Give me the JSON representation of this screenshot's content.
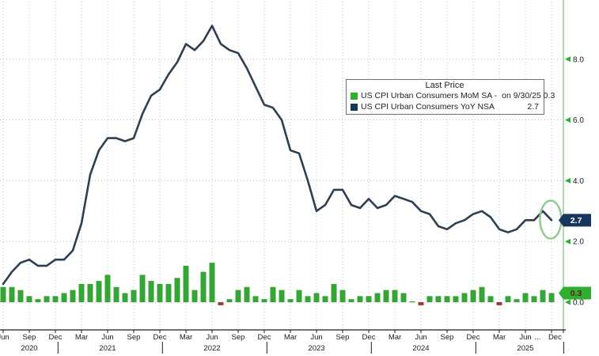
{
  "legend": {
    "title": "Last Price",
    "series": [
      {
        "label": "US CPI Urban Consumers MoM SA -",
        "value": "on 9/30/25 0.3",
        "swatch_color": "#2fae2f"
      },
      {
        "label": "US CPI Urban Consumers YoY NSA",
        "value": "2.7",
        "swatch_color": "#17365d"
      }
    ]
  },
  "chart_data": {
    "type": "mixed",
    "title": "",
    "x": {
      "start": "2020-06",
      "end": "2025-09",
      "unit": "month"
    },
    "grid": "dotted",
    "legend_position": "upper-right",
    "ylim": [
      -0.9,
      9.95
    ],
    "series": [
      {
        "name": "US CPI Urban Consumers MoM SA",
        "type": "bar",
        "color": "#35a535",
        "negative_color": "#9c3a32",
        "values": [
          0.5,
          0.5,
          0.4,
          0.2,
          0.1,
          0.2,
          0.2,
          0.3,
          0.4,
          0.6,
          0.6,
          0.7,
          0.9,
          0.5,
          0.3,
          0.4,
          0.9,
          0.7,
          0.6,
          0.6,
          0.8,
          1.2,
          0.4,
          1.0,
          1.3,
          -0.1,
          0.1,
          0.4,
          0.5,
          0.2,
          0.1,
          0.5,
          0.4,
          0.1,
          0.4,
          0.2,
          0.3,
          0.2,
          0.6,
          0.4,
          0.1,
          0.2,
          0.2,
          0.3,
          0.4,
          0.4,
          0.3,
          0.0,
          -0.1,
          0.2,
          0.2,
          0.2,
          0.2,
          0.3,
          0.4,
          0.5,
          0.2,
          -0.1,
          0.2,
          0.1,
          0.3,
          0.2,
          0.4,
          0.3
        ]
      },
      {
        "name": "US CPI Urban Consumers YoY NSA",
        "type": "line",
        "color": "#2d3f50",
        "values": [
          0.6,
          1.0,
          1.3,
          1.4,
          1.2,
          1.2,
          1.4,
          1.4,
          1.7,
          2.6,
          4.2,
          5.0,
          5.4,
          5.4,
          5.3,
          5.4,
          6.2,
          6.8,
          7.0,
          7.5,
          7.9,
          8.5,
          8.3,
          8.6,
          9.1,
          8.5,
          8.3,
          8.2,
          7.7,
          7.1,
          6.5,
          6.4,
          6.0,
          5.0,
          4.9,
          4.0,
          3.0,
          3.2,
          3.7,
          3.7,
          3.2,
          3.1,
          3.4,
          3.1,
          3.2,
          3.5,
          3.4,
          3.3,
          3.0,
          2.9,
          2.5,
          2.4,
          2.6,
          2.7,
          2.9,
          3.0,
          2.8,
          2.4,
          2.3,
          2.4,
          2.7,
          2.7,
          3.0,
          2.7
        ]
      }
    ],
    "y_ticks": [
      {
        "value": 8,
        "label": "8.0"
      },
      {
        "value": 6,
        "label": "6.0"
      },
      {
        "value": 4,
        "label": "4.0"
      },
      {
        "value": 2,
        "label": "2.0"
      },
      {
        "value": 0,
        "label": "0.0"
      }
    ],
    "x_ticks": [
      {
        "m": 0,
        "label": "Jun"
      },
      {
        "m": 3,
        "label": "Sep"
      },
      {
        "m": 6,
        "label": "Dec"
      },
      {
        "m": 9,
        "label": "Mar"
      },
      {
        "m": 12,
        "label": "Jun"
      },
      {
        "m": 15,
        "label": "Sep"
      },
      {
        "m": 18,
        "label": "Dec"
      },
      {
        "m": 21,
        "label": "Mar"
      },
      {
        "m": 24,
        "label": "Jun"
      },
      {
        "m": 27,
        "label": "Sep"
      },
      {
        "m": 30,
        "label": "Dec"
      },
      {
        "m": 33,
        "label": "Mar"
      },
      {
        "m": 36,
        "label": "Jun"
      },
      {
        "m": 39,
        "label": "Sep"
      },
      {
        "m": 42,
        "label": "Dec"
      },
      {
        "m": 45,
        "label": "Mar"
      },
      {
        "m": 48,
        "label": "Jun"
      },
      {
        "m": 51,
        "label": "Sep"
      },
      {
        "m": 54,
        "label": "Dec"
      },
      {
        "m": 57,
        "label": "Mar"
      },
      {
        "m": 60,
        "label": "Jun"
      },
      {
        "m": 61.4,
        "label": "..."
      },
      {
        "m": 63.4,
        "label": "Dec"
      }
    ],
    "year_labels": [
      {
        "m": 3,
        "label": "2020"
      },
      {
        "m": 12,
        "label": "2021"
      },
      {
        "m": 24,
        "label": "2022"
      },
      {
        "m": 36,
        "label": "2023"
      },
      {
        "m": 48,
        "label": "2024"
      },
      {
        "m": 60,
        "label": "2025"
      }
    ],
    "year_separators_m": [
      6.3,
      18.3,
      30.3,
      42.3,
      54.3,
      64.4
    ],
    "badges": [
      {
        "series": "yoy",
        "label": "2.7",
        "value": 2.7,
        "bg": "#17365d",
        "fg": "#ffffff"
      },
      {
        "series": "mom",
        "label": "0.3",
        "value": 0.3,
        "bg": "#2fae2f",
        "fg": "#5e2218"
      }
    ],
    "annotation": {
      "type": "ellipse",
      "cx_month": 62.9,
      "cy_value": 2.72,
      "color": "#8fcb8f",
      "note": "circles final YoY downtick"
    }
  },
  "axis_colors": {
    "right_axis": "#86c386",
    "tick_arrow": "#2fae2f",
    "bottom_axis": "#1a1a1a",
    "grid": "#bdbdbd",
    "label": "#1a1a1a"
  }
}
